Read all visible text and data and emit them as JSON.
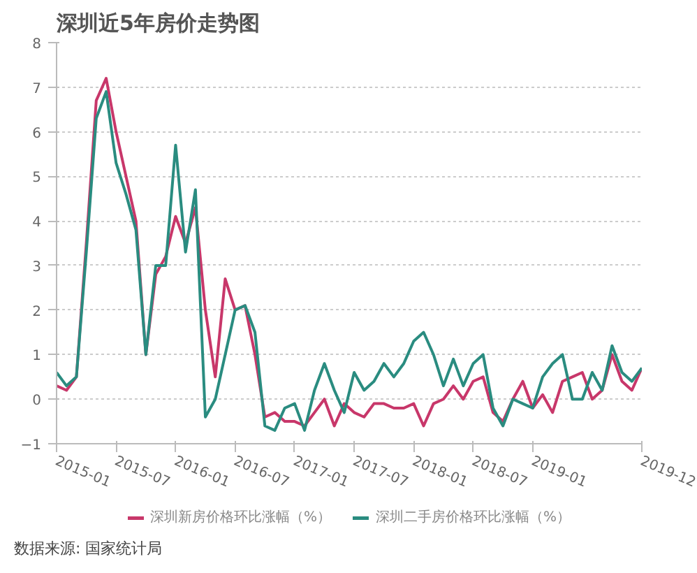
{
  "chart_data": {
    "type": "line",
    "title": "深圳近5年房价走势图",
    "x": [
      "2015-01",
      "2015-02",
      "2015-03",
      "2015-04",
      "2015-05",
      "2015-06",
      "2015-07",
      "2015-08",
      "2015-09",
      "2015-10",
      "2015-11",
      "2015-12",
      "2016-01",
      "2016-02",
      "2016-03",
      "2016-04",
      "2016-05",
      "2016-06",
      "2016-07",
      "2016-08",
      "2016-09",
      "2016-10",
      "2016-11",
      "2016-12",
      "2017-01",
      "2017-02",
      "2017-03",
      "2017-04",
      "2017-05",
      "2017-06",
      "2017-07",
      "2017-08",
      "2017-09",
      "2017-10",
      "2017-11",
      "2017-12",
      "2018-01",
      "2018-02",
      "2018-03",
      "2018-04",
      "2018-05",
      "2018-06",
      "2018-07",
      "2018-08",
      "2018-09",
      "2018-10",
      "2018-11",
      "2018-12",
      "2019-01",
      "2019-02",
      "2019-03",
      "2019-04",
      "2019-05",
      "2019-06",
      "2019-07",
      "2019-08",
      "2019-09",
      "2019-10",
      "2019-11",
      "2019-12"
    ],
    "series": [
      {
        "name": "深圳新房价格环比涨幅（%）",
        "color": "#c8376a",
        "values": [
          0.3,
          0.2,
          0.5,
          3.5,
          6.7,
          7.2,
          6.0,
          5.0,
          4.0,
          1.0,
          2.8,
          3.2,
          4.1,
          3.5,
          4.3,
          2.0,
          0.5,
          2.7,
          2.0,
          2.1,
          1.0,
          -0.4,
          -0.3,
          -0.5,
          -0.5,
          -0.6,
          -0.3,
          0.0,
          -0.6,
          -0.1,
          -0.3,
          -0.4,
          -0.1,
          -0.1,
          -0.2,
          -0.2,
          -0.1,
          -0.6,
          -0.1,
          0.0,
          0.3,
          0.0,
          0.4,
          0.5,
          -0.3,
          -0.5,
          0.0,
          0.4,
          -0.2,
          0.1,
          -0.3,
          0.4,
          0.5,
          0.6,
          0.0,
          0.2,
          1.0,
          0.4,
          0.2,
          0.7
        ]
      },
      {
        "name": "深圳二手房价格环比涨幅（%）",
        "color": "#2a8c80",
        "values": [
          0.6,
          0.3,
          0.5,
          3.3,
          6.3,
          6.9,
          5.3,
          4.6,
          3.8,
          1.0,
          3.0,
          3.0,
          5.7,
          3.3,
          4.7,
          -0.4,
          0.0,
          1.0,
          2.0,
          2.1,
          1.5,
          -0.6,
          -0.7,
          -0.2,
          -0.1,
          -0.7,
          0.2,
          0.8,
          0.2,
          -0.3,
          0.6,
          0.2,
          0.4,
          0.8,
          0.5,
          0.8,
          1.3,
          1.5,
          1.0,
          0.3,
          0.9,
          0.3,
          0.8,
          1.0,
          -0.2,
          -0.6,
          0.0,
          -0.1,
          -0.2,
          0.5,
          0.8,
          1.0,
          0.0,
          0.0,
          0.6,
          0.2,
          1.2,
          0.6,
          0.4,
          0.7
        ]
      }
    ],
    "xlim": [
      "2015-01",
      "2019-12"
    ],
    "xticks": [
      "2015-01",
      "2015-07",
      "2016-01",
      "2016-07",
      "2017-01",
      "2017-07",
      "2018-01",
      "2018-07",
      "2019-01",
      "2019-12"
    ],
    "ylim": [
      -1,
      8
    ],
    "yticks": [
      -1,
      0,
      1,
      2,
      3,
      4,
      5,
      6,
      7,
      8
    ],
    "grid": "y",
    "legend": "bottom",
    "marker": "none",
    "line_style": "solid",
    "annotations": [
      "数据来源: 国家统计局"
    ]
  }
}
